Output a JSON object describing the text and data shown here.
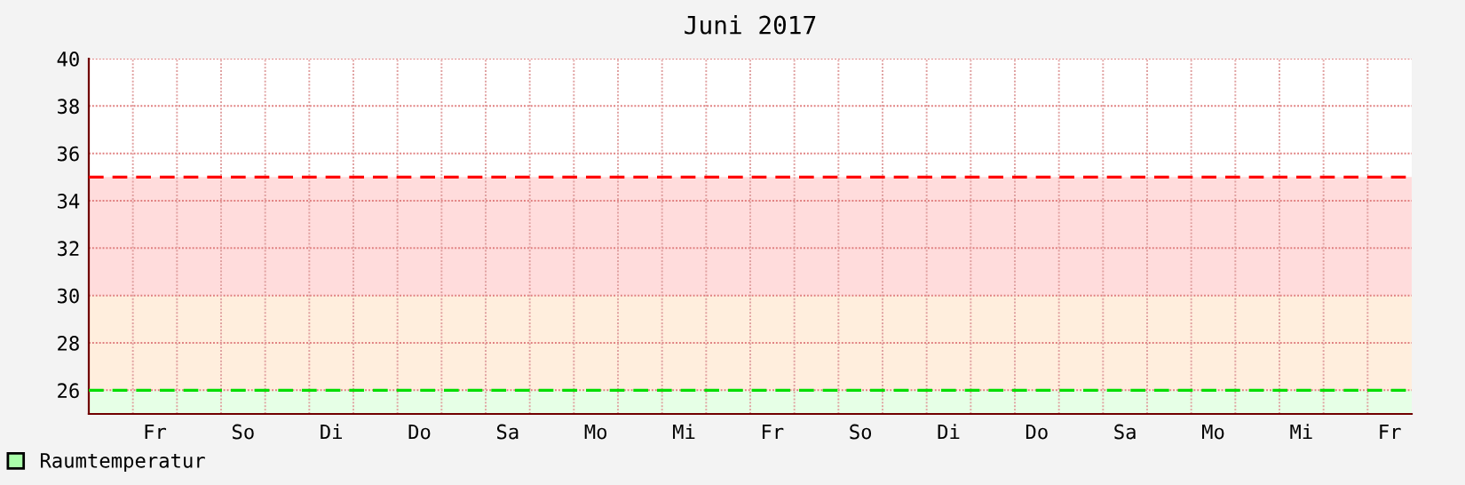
{
  "chart_data": {
    "type": "area",
    "title": "Juni 2017",
    "categories": [
      null,
      "Fr",
      null,
      "So",
      null,
      "Di",
      null,
      "Do",
      null,
      "Sa",
      null,
      "Mo",
      null,
      "Mi",
      null,
      "Fr",
      null,
      "So",
      null,
      "Di",
      null,
      "Do",
      null,
      "Sa",
      null,
      "Mo",
      null,
      "Mi",
      null,
      "Fr"
    ],
    "series": [
      {
        "name": "Raumtemperatur",
        "color": "#aaffaa",
        "values": [
          null,
          null,
          null,
          null,
          null,
          null,
          null,
          null,
          null,
          null,
          null,
          null,
          null,
          null,
          null,
          null,
          null,
          null,
          null,
          null,
          null,
          null,
          null,
          null,
          null,
          null,
          null,
          null,
          null,
          null
        ]
      }
    ],
    "ylim": [
      25,
      40
    ],
    "yticks": [
      26,
      28,
      30,
      32,
      34,
      36,
      38,
      40
    ],
    "bands": [
      {
        "axis": "y",
        "from": 25,
        "to": 26,
        "color": "#e6ffe6"
      },
      {
        "axis": "y",
        "from": 26,
        "to": 30,
        "color": "#ffeedd"
      },
      {
        "axis": "y",
        "from": 30,
        "to": 35,
        "color": "#ffdcdc"
      }
    ],
    "ref_lines": [
      {
        "axis": "y",
        "value": 26,
        "color": "#00dd00",
        "line_style": "dashed"
      },
      {
        "axis": "y",
        "value": 35,
        "color": "#ff0000",
        "line_style": "dashed"
      }
    ],
    "grid": true,
    "legend": "bottom left"
  }
}
